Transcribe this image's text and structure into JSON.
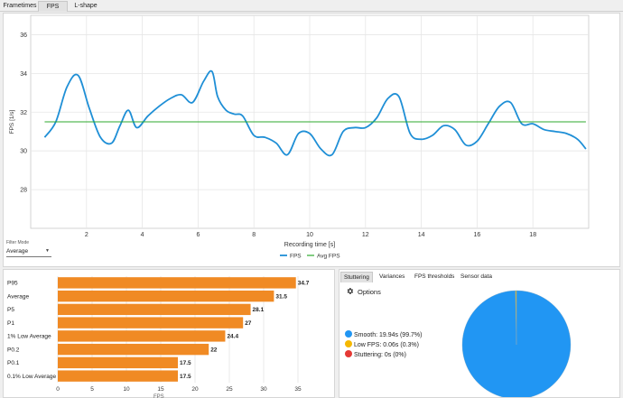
{
  "tabs": [
    {
      "label": "Frametimes",
      "active": false
    },
    {
      "label": "FPS",
      "active": true
    },
    {
      "label": "L-shape",
      "active": false
    }
  ],
  "filter_mode": {
    "label": "Filter Mode",
    "value": "Average"
  },
  "colors": {
    "fps_line": "#1f8fd6",
    "avg_line": "#2eaa2e",
    "bar": "#f08a24",
    "smooth": "#2196f3",
    "low_fps": "#f5b800",
    "stuttering": "#e53935"
  },
  "chart_data": [
    {
      "type": "line",
      "title": "",
      "xlabel": "Recording time [s]",
      "ylabel": "FPS [1/s]",
      "xlim": [
        0,
        20
      ],
      "ylim": [
        26,
        37
      ],
      "xticks": [
        2,
        4,
        6,
        8,
        10,
        12,
        14,
        16,
        18
      ],
      "yticks": [
        28,
        30,
        32,
        34,
        36
      ],
      "series": [
        {
          "name": "FPS",
          "x": [
            0.5,
            0.9,
            1.3,
            1.7,
            2.1,
            2.5,
            2.9,
            3.2,
            3.5,
            3.8,
            4.2,
            4.6,
            5.0,
            5.4,
            5.8,
            6.2,
            6.5,
            6.7,
            7.0,
            7.3,
            7.6,
            8.0,
            8.4,
            8.8,
            9.2,
            9.6,
            10.0,
            10.4,
            10.8,
            11.2,
            11.6,
            12.0,
            12.4,
            12.8,
            13.2,
            13.6,
            14.0,
            14.4,
            14.8,
            15.2,
            15.6,
            16.0,
            16.4,
            16.8,
            17.2,
            17.6,
            18.0,
            18.4,
            18.8,
            19.2,
            19.6,
            19.9
          ],
          "values": [
            30.7,
            31.5,
            33.3,
            33.9,
            32.2,
            30.7,
            30.4,
            31.3,
            32.1,
            31.2,
            31.8,
            32.3,
            32.7,
            32.9,
            32.5,
            33.6,
            34.1,
            32.8,
            32.1,
            31.9,
            31.8,
            30.8,
            30.7,
            30.4,
            29.8,
            30.9,
            30.9,
            30.1,
            29.8,
            31.0,
            31.2,
            31.2,
            31.7,
            32.7,
            32.8,
            30.9,
            30.6,
            30.8,
            31.3,
            31.1,
            30.3,
            30.5,
            31.4,
            32.3,
            32.5,
            31.4,
            31.4,
            31.1,
            31.0,
            30.9,
            30.6,
            30.1
          ]
        },
        {
          "name": "Avg FPS",
          "x": [
            0.5,
            19.9
          ],
          "values": [
            31.5,
            31.5
          ]
        }
      ],
      "legend": [
        "FPS",
        "Avg FPS"
      ],
      "legend_position": "bottom-center",
      "grid": true
    },
    {
      "type": "bar",
      "orientation": "horizontal",
      "categories": [
        "P95",
        "Average",
        "P5",
        "P1",
        "1% Low Average",
        "P0.2",
        "P0.1",
        "0.1% Low Average"
      ],
      "values": [
        34.7,
        31.5,
        28.1,
        27,
        24.4,
        22,
        17.5,
        17.5
      ],
      "value_labels": [
        "34.7",
        "31.5",
        "28.1",
        "27",
        "24.4",
        "22",
        "17.5",
        "17.5"
      ],
      "xlim": [
        0,
        35
      ],
      "xticks": [
        0,
        5,
        10,
        15,
        20,
        25,
        30,
        35
      ],
      "xlabel": "FPS",
      "grid": true
    },
    {
      "type": "pie",
      "categories": [
        "Smooth",
        "Low FPS",
        "Stuttering"
      ],
      "values": [
        99.7,
        0.3,
        0
      ],
      "labels": [
        "Smooth:  19.94s (99.7%)",
        "Low FPS:  0.06s (0.3%)",
        "Stuttering:  0s (0%)"
      ]
    }
  ],
  "right_panel": {
    "tabs": [
      {
        "label": "Stuttering",
        "active": true
      },
      {
        "label": "Variances",
        "active": false
      },
      {
        "label": "FPS thresholds",
        "active": false
      },
      {
        "label": "Sensor data",
        "active": false
      }
    ],
    "options_label": "Options",
    "options_icon": "gear-icon"
  }
}
